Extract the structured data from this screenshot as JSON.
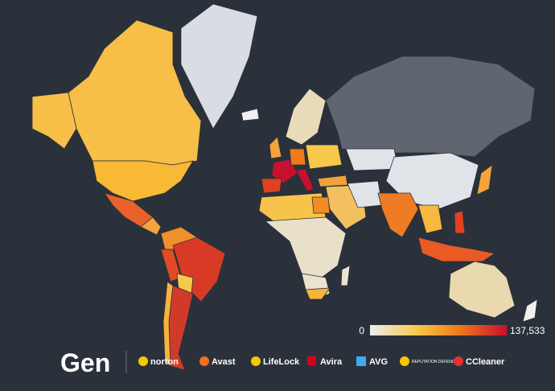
{
  "legend": {
    "min_label": "0",
    "max_label": "137,533"
  },
  "footer": {
    "logo": "Gen",
    "brands": [
      "norton",
      "Avast",
      "LifeLock",
      "Avira",
      "AVG",
      "REPUTATION DEFENDER",
      "CCleaner"
    ]
  }
}
